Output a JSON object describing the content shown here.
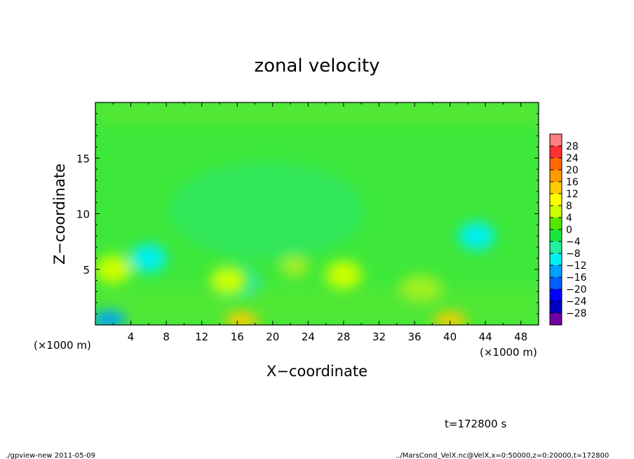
{
  "chart_data": {
    "type": "heatmap",
    "title": "zonal velocity",
    "xlabel": "X−coordinate",
    "ylabel": "Z−coordinate",
    "x_unit_left": "(×1000 m)",
    "x_unit_right": "(×1000 m)",
    "xlim": [
      0,
      50
    ],
    "ylim": [
      0,
      20
    ],
    "xticks": [
      "4",
      "8",
      "12",
      "16",
      "20",
      "24",
      "28",
      "32",
      "36",
      "40",
      "44",
      "48"
    ],
    "yticks": [
      "5",
      "10",
      "15"
    ],
    "x_values": [
      4,
      8,
      12,
      16,
      20,
      24,
      28,
      32,
      36,
      40,
      44,
      48
    ],
    "y_values": [
      5,
      10,
      15
    ],
    "colorbar": {
      "levels": [
        "28",
        "24",
        "20",
        "16",
        "12",
        "8",
        "4",
        "0",
        "−4",
        "−8",
        "−12",
        "−16",
        "−20",
        "−24",
        "−28"
      ],
      "colors": [
        "#ff8080",
        "#ff3030",
        "#ff6a00",
        "#ff9a00",
        "#ffcc00",
        "#ffff00",
        "#ccff00",
        "#55e600",
        "#18e83c",
        "#22f0a0",
        "#00f0f0",
        "#00a0ff",
        "#0060ff",
        "#0000ff",
        "#0000c0",
        "#7000a0"
      ]
    },
    "field_features": [
      {
        "x": 1.5,
        "z": 0.5,
        "value": -14
      },
      {
        "x": 16.5,
        "z": 0.4,
        "value": 16
      },
      {
        "x": 40,
        "z": 0.4,
        "value": 14
      },
      {
        "x": 2,
        "z": 5,
        "value": 7
      },
      {
        "x": 6,
        "z": 6,
        "value": -10
      },
      {
        "x": 43,
        "z": 8,
        "value": -8
      },
      {
        "x": 15,
        "z": 4,
        "value": 5
      },
      {
        "x": 28,
        "z": 4.5,
        "value": 5
      }
    ]
  },
  "time_label": "t=172800 s",
  "footer_left": "./gpview-new   2011-05-09",
  "footer_right": "../MarsCond_VelX.nc@VelX,x=0:50000,z=0:20000,t=172800"
}
